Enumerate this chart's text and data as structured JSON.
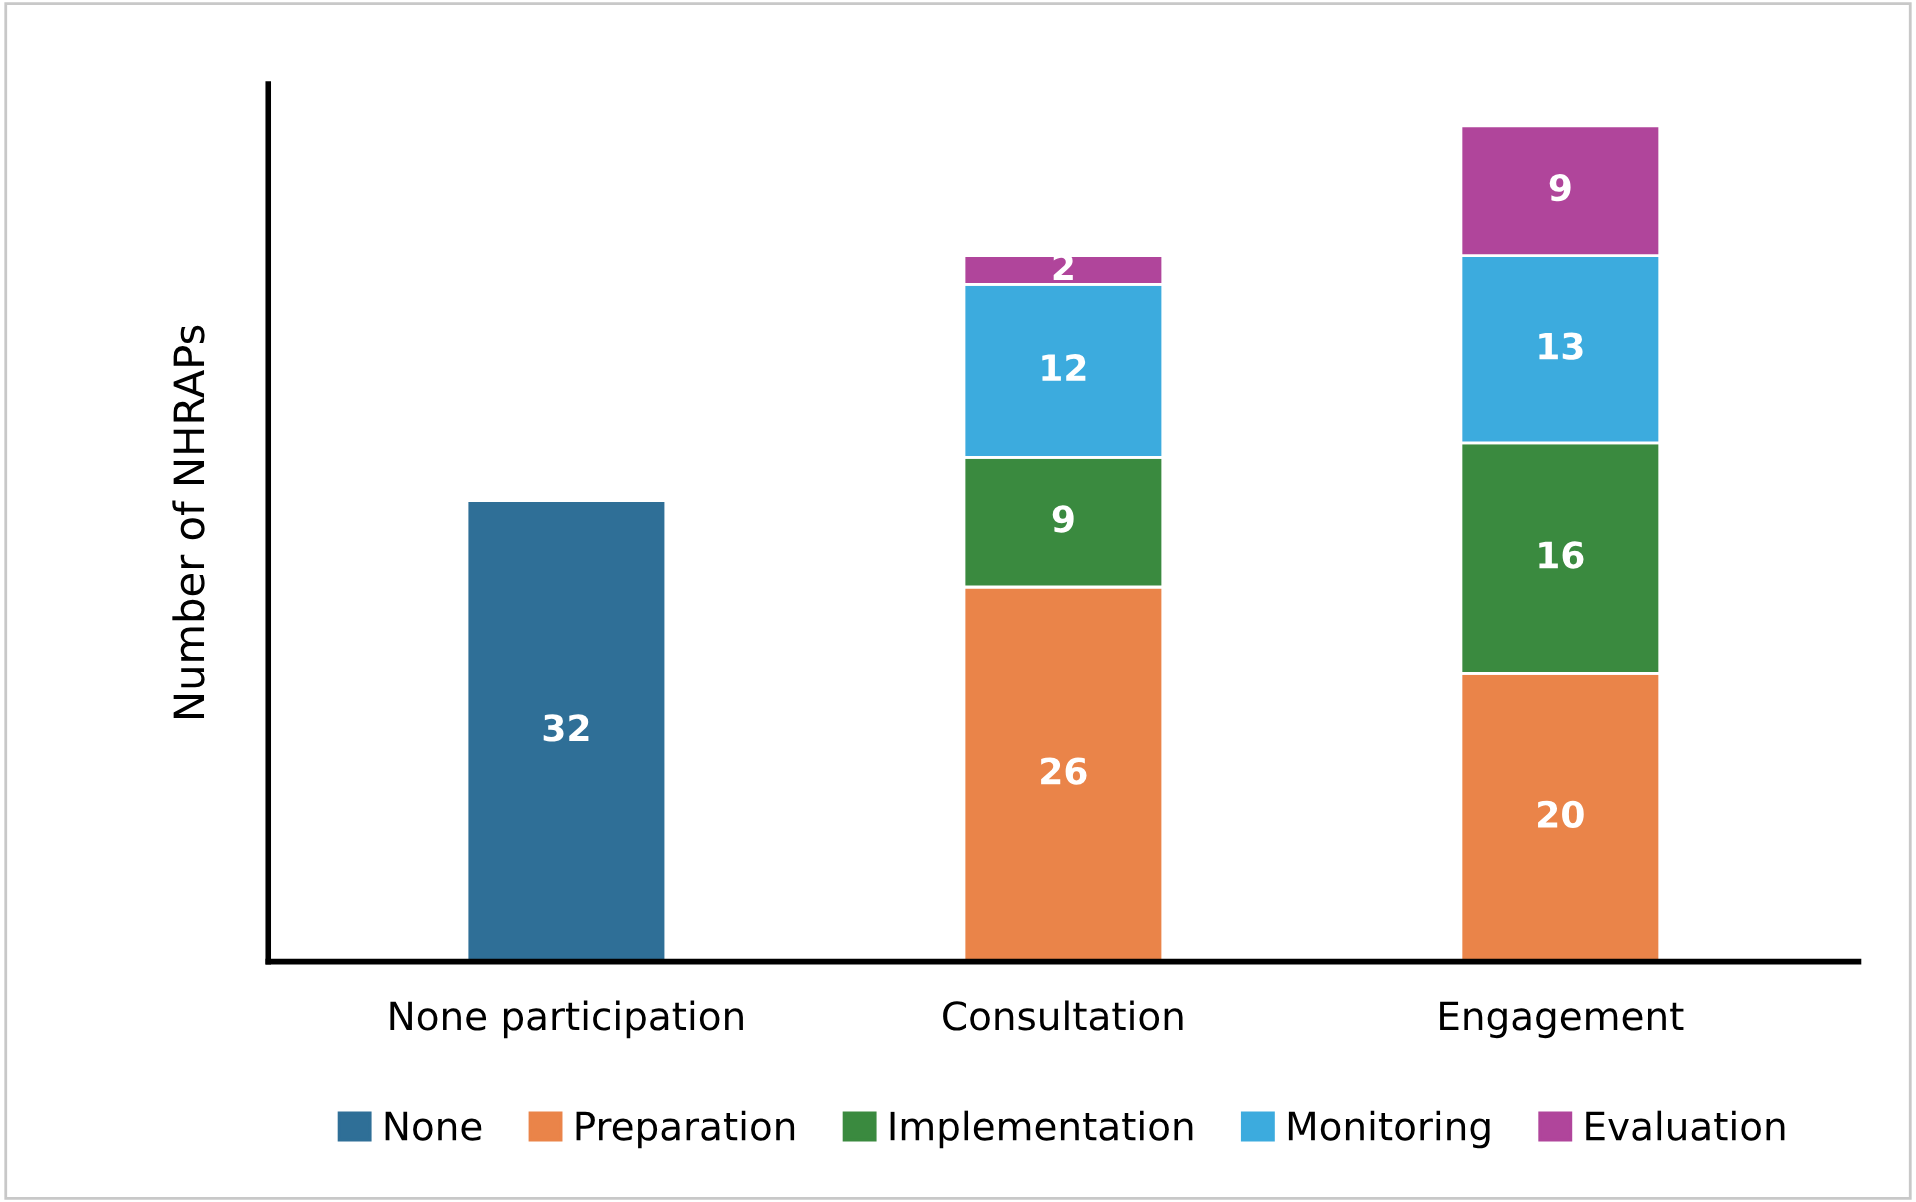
{
  "chart_data": {
    "type": "bar",
    "stacked": true,
    "ylabel": "Number of NHRAPs",
    "categories": [
      "None participation",
      "Consultation",
      "Engagement"
    ],
    "series": [
      {
        "name": "None",
        "color": "#2f6f97",
        "values": [
          32,
          null,
          null
        ]
      },
      {
        "name": "Preparation",
        "color": "#ea8449",
        "values": [
          null,
          26,
          20
        ]
      },
      {
        "name": "Implementation",
        "color": "#3a8a3f",
        "values": [
          null,
          9,
          16
        ]
      },
      {
        "name": "Monitoring",
        "color": "#3cabde",
        "values": [
          null,
          12,
          13
        ]
      },
      {
        "name": "Evaluation",
        "color": "#b0459b",
        "values": [
          null,
          2,
          9
        ]
      }
    ],
    "data_labels": true,
    "legend": "bottom",
    "grid": false,
    "tick_labels": "x"
  }
}
